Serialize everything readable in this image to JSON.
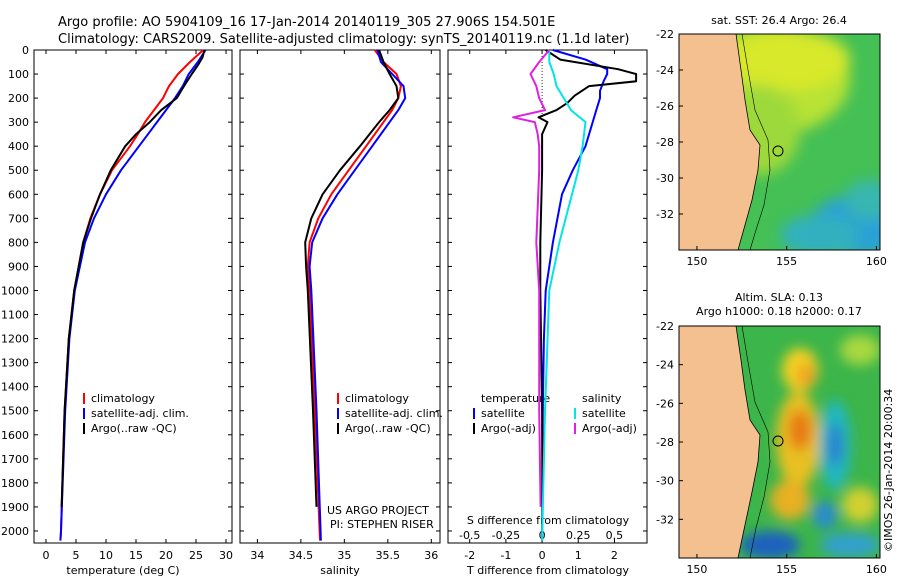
{
  "header": {
    "line1": "Argo profile: AO 5904109_16 17-Jan-2014 20140119_305 27.906S 154.501E",
    "line2": "Climatology: CARS2009. Satellite-adjusted climatology: synTS_20140119.nc (1.1d later)"
  },
  "colors": {
    "climatology": "#ff0000",
    "satellite": "#0000ff",
    "argo": "#000000",
    "satellite_s": "#00e5e5",
    "argo_s": "#e020e0",
    "land": "#f5c08f"
  },
  "chart_data": [
    {
      "type": "line",
      "title": "",
      "xlabel": "temperature (deg C)",
      "ylabel": "",
      "xlim": [
        -2,
        31
      ],
      "ylim": [
        2050,
        0
      ],
      "xticks": [
        "0",
        "5",
        "10",
        "15",
        "20",
        "25",
        "30"
      ],
      "xtick_values": [
        0,
        5,
        10,
        15,
        20,
        25,
        30
      ],
      "yticks": [
        "0",
        "100",
        "200",
        "300",
        "400",
        "500",
        "600",
        "700",
        "800",
        "900",
        "1000",
        "1100",
        "1200",
        "1300",
        "1400",
        "1500",
        "1600",
        "1700",
        "1800",
        "1900",
        "2000"
      ],
      "legend": [
        "climatology",
        "satellite-adj. clim.",
        "Argo(..raw -QC)"
      ],
      "series": [
        {
          "name": "climatology",
          "color": "#ff0000",
          "depth": [
            0,
            50,
            100,
            150,
            200,
            250,
            300,
            350,
            400,
            500,
            600,
            700,
            800,
            1000,
            1200,
            1500,
            2000,
            2040
          ],
          "values": [
            26.2,
            24,
            22,
            20.5,
            19.5,
            18,
            16.5,
            15.3,
            14,
            11,
            9,
            7.4,
            6.2,
            4.7,
            3.8,
            3.1,
            2.5,
            2.4
          ]
        },
        {
          "name": "satellite-adj. clim.",
          "color": "#0000ff",
          "depth": [
            0,
            50,
            100,
            150,
            200,
            250,
            300,
            350,
            400,
            500,
            600,
            700,
            800,
            1000,
            1200,
            1500,
            2000,
            2040
          ],
          "values": [
            26.6,
            25.3,
            23.8,
            22.8,
            21.5,
            20,
            18.5,
            17,
            15.5,
            12.5,
            10,
            8,
            6.5,
            4.8,
            3.9,
            3.2,
            2.5,
            2.4
          ]
        },
        {
          "name": "Argo(..raw -QC)",
          "color": "#000000",
          "depth": [
            0,
            30,
            60,
            100,
            150,
            200,
            250,
            300,
            350,
            400,
            500,
            600,
            700,
            800,
            1000,
            1200,
            1500,
            1900
          ],
          "values": [
            26.4,
            26.1,
            25.4,
            24.3,
            23,
            21.8,
            19.2,
            17.3,
            15,
            13.2,
            10.8,
            9,
            7.5,
            6.2,
            4.7,
            3.8,
            3.1,
            2.6
          ]
        }
      ]
    },
    {
      "type": "line",
      "title": "",
      "xlabel": "salinity",
      "ylabel": "",
      "xlim": [
        33.8,
        36.1
      ],
      "ylim": [
        2050,
        0
      ],
      "xticks": [
        "34",
        "34.5",
        "35",
        "35.5",
        "36"
      ],
      "xtick_values": [
        34,
        34.5,
        35,
        35.5,
        36
      ],
      "legend": [
        "climatology",
        "satellite-adj. clim.",
        "Argo(..raw -QC)"
      ],
      "annotation": [
        "US ARGO PROJECT",
        "PI: STEPHEN RISER"
      ],
      "series": [
        {
          "name": "climatology",
          "color": "#ff0000",
          "depth": [
            0,
            50,
            100,
            150,
            200,
            250,
            300,
            400,
            500,
            600,
            700,
            800,
            900,
            1000,
            1500,
            2040
          ],
          "values": [
            35.35,
            35.45,
            35.6,
            35.65,
            35.62,
            35.55,
            35.45,
            35.25,
            35.05,
            34.85,
            34.7,
            34.6,
            34.58,
            34.6,
            34.66,
            34.72
          ]
        },
        {
          "name": "satellite-adj. clim.",
          "color": "#0000ff",
          "depth": [
            0,
            50,
            100,
            150,
            200,
            250,
            300,
            400,
            500,
            600,
            700,
            800,
            900,
            1000,
            1500,
            2040
          ],
          "values": [
            35.38,
            35.42,
            35.55,
            35.68,
            35.7,
            35.62,
            35.52,
            35.32,
            35.12,
            34.92,
            34.75,
            34.63,
            34.6,
            34.62,
            34.68,
            34.73
          ]
        },
        {
          "name": "Argo(..raw -QC)",
          "color": "#000000",
          "depth": [
            0,
            50,
            100,
            150,
            200,
            250,
            300,
            400,
            500,
            600,
            700,
            800,
            900,
            1000,
            1500,
            1900
          ],
          "values": [
            35.4,
            35.45,
            35.52,
            35.6,
            35.62,
            35.52,
            35.4,
            35.18,
            34.95,
            34.75,
            34.62,
            34.55,
            34.56,
            34.58,
            34.64,
            34.68
          ]
        }
      ]
    },
    {
      "type": "line",
      "title": "",
      "xlabel": "T difference from climatology",
      "xlabel_top": "S difference from climatology",
      "xlim": [
        -2.6,
        2.9
      ],
      "ylim": [
        2050,
        0
      ],
      "xticks": [
        "-2",
        "-1",
        "0",
        "1",
        "2"
      ],
      "xtick_values": [
        -2,
        -1,
        0,
        1,
        2
      ],
      "sticks": [
        "-0.5",
        "-0.25",
        "0",
        "0.25",
        "0.5"
      ],
      "stick_values": [
        -0.5,
        -0.25,
        0,
        0.25,
        0.5
      ],
      "legend_headers": [
        "temperature",
        "salinity"
      ],
      "legend": [
        "satellite",
        "Argo(-adj)",
        "satellite",
        "Argo(-adj)"
      ],
      "series": [
        {
          "name": "temperature satellite",
          "color": "#0000ff",
          "depth": [
            0,
            40,
            80,
            100,
            130,
            170,
            200,
            250,
            300,
            400,
            500,
            600,
            800,
            1000,
            1200,
            1500,
            2040
          ],
          "values": [
            0.3,
            1.2,
            1.8,
            1.8,
            1.7,
            1.6,
            1.6,
            1.5,
            1.4,
            1.2,
            0.85,
            0.55,
            0.3,
            0.1,
            0.05,
            0.02,
            0
          ]
        },
        {
          "name": "temperature Argo(-adj)",
          "color": "#000000",
          "depth": [
            0,
            40,
            80,
            100,
            130,
            150,
            190,
            220,
            250,
            280,
            300,
            350,
            400,
            500,
            800,
            1000,
            1500,
            1900
          ],
          "values": [
            0.1,
            0.5,
            2.1,
            2.6,
            2.6,
            1.3,
            0.9,
            0.7,
            0.4,
            -0.1,
            0.15,
            0,
            0,
            0,
            -0.05,
            -0.05,
            0,
            0.01
          ]
        },
        {
          "name": "salinity satellite",
          "color": "#00e5e5",
          "depth": [
            0,
            50,
            100,
            150,
            200,
            250,
            300,
            400,
            500,
            800,
            1000,
            1500,
            2040
          ],
          "values": [
            0.05,
            0.05,
            0.08,
            0.1,
            0.15,
            0.2,
            0.3,
            0.28,
            0.25,
            0.12,
            0.05,
            0.02,
            0
          ]
        },
        {
          "name": "salinity Argo(-adj)",
          "color": "#e020e0",
          "depth": [
            0,
            50,
            100,
            150,
            200,
            250,
            280,
            300,
            350,
            400,
            500,
            800,
            1000,
            1500,
            1900
          ],
          "values": [
            0.05,
            -0.02,
            -0.08,
            -0.04,
            -0.02,
            0.02,
            -0.2,
            -0.05,
            -0.03,
            -0.02,
            -0.02,
            -0.04,
            -0.02,
            -0.02,
            -0.01
          ]
        }
      ]
    },
    {
      "type": "heatmap",
      "title": "sat. SST: 26.4  Argo: 26.4",
      "xlim": [
        149,
        160.2
      ],
      "ylim": [
        -34,
        -22
      ],
      "xticks": [
        "150",
        "155",
        "160"
      ],
      "xtick_values": [
        150,
        155,
        160
      ],
      "yticks": [
        "-22",
        "-24",
        "-26",
        "-28",
        "-30",
        "-32"
      ],
      "ytick_values": [
        -22,
        -24,
        -26,
        -28,
        -30,
        -32
      ],
      "marker": {
        "lon": 154.5,
        "lat": -27.9
      }
    },
    {
      "type": "heatmap",
      "title": "Altim. SLA: 0.13",
      "subtitle": "Argo h1000: 0.18 h2000: 0.17",
      "xlim": [
        149,
        160.2
      ],
      "ylim": [
        -34,
        -22
      ],
      "xticks": [
        "150",
        "155",
        "160"
      ],
      "xtick_values": [
        150,
        155,
        160
      ],
      "yticks": [
        "-22",
        "-24",
        "-26",
        "-28",
        "-30",
        "-32"
      ],
      "ytick_values": [
        -22,
        -24,
        -26,
        -28,
        -30,
        -32
      ],
      "marker": {
        "lon": 154.5,
        "lat": -27.9
      },
      "credit": "©IMOS 26-Jan-2014 20:00:34"
    }
  ]
}
